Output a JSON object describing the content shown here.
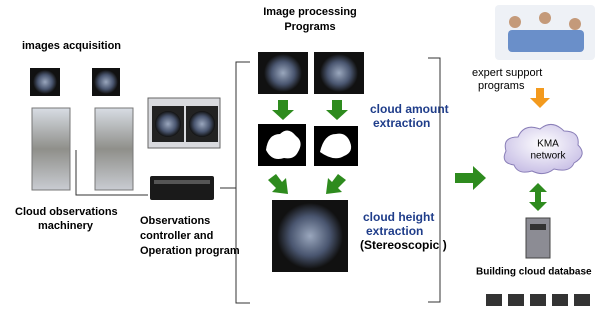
{
  "acquisition": {
    "title": "images acquisition"
  },
  "machinery": {
    "label": [
      "Cloud observations",
      "machinery"
    ]
  },
  "controller": {
    "label": [
      "Observations",
      "controller and",
      "Operation program"
    ]
  },
  "processing": {
    "title": [
      "Image processing",
      "Programs"
    ],
    "amount": [
      "cloud amount",
      "extraction"
    ],
    "height": [
      "cloud height",
      "extraction"
    ],
    "method": "(Stereoscopic )"
  },
  "expert": {
    "label": [
      "expert support",
      "programs"
    ]
  },
  "network": {
    "label": [
      "KMA",
      "network"
    ]
  },
  "database": {
    "label": "Building cloud database"
  }
}
